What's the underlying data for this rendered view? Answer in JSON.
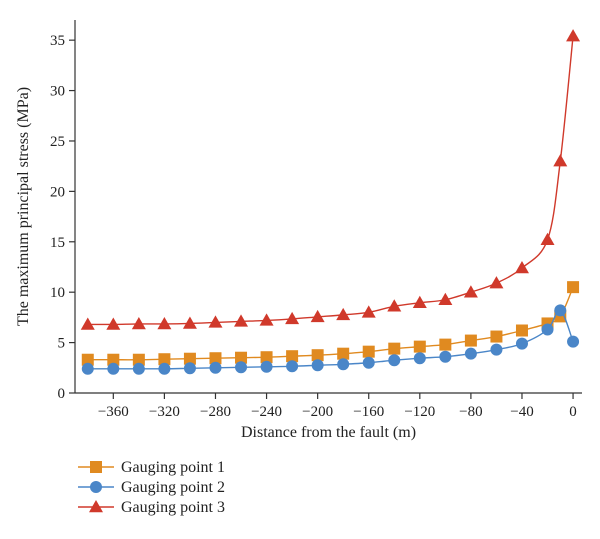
{
  "chart_data": {
    "type": "line",
    "title": "",
    "xlabel": "Distance from the fault (m)",
    "ylabel": "The maximum principal stress (MPa)",
    "xlim": [
      -390,
      7
    ],
    "ylim": [
      0,
      37
    ],
    "x_ticks": [
      -360,
      -320,
      -280,
      -240,
      -200,
      -160,
      -120,
      -80,
      -40,
      0
    ],
    "y_ticks": [
      0,
      5,
      10,
      15,
      20,
      25,
      30,
      35
    ],
    "grid": false,
    "legend_position": "bottom-left",
    "x": [
      -380,
      -360,
      -340,
      -320,
      -300,
      -280,
      -260,
      -240,
      -220,
      -200,
      -180,
      -160,
      -140,
      -120,
      -100,
      -80,
      -60,
      -40,
      -20,
      -10,
      0
    ],
    "series": [
      {
        "name": "Gauging point 1",
        "color": "#E08A20",
        "marker": "square",
        "values": [
          3.3,
          3.3,
          3.3,
          3.35,
          3.4,
          3.45,
          3.5,
          3.55,
          3.65,
          3.75,
          3.9,
          4.1,
          4.4,
          4.6,
          4.8,
          5.2,
          5.6,
          6.2,
          6.9,
          7.6,
          10.5
        ]
      },
      {
        "name": "Gauging point 2",
        "color": "#4A86C8",
        "marker": "circle",
        "values": [
          2.4,
          2.4,
          2.4,
          2.4,
          2.45,
          2.5,
          2.55,
          2.6,
          2.65,
          2.75,
          2.85,
          3.0,
          3.25,
          3.45,
          3.6,
          3.9,
          4.3,
          4.9,
          6.3,
          8.2,
          5.1
        ]
      },
      {
        "name": "Gauging point 3",
        "color": "#D0392B",
        "marker": "triangle",
        "values": [
          6.8,
          6.8,
          6.85,
          6.85,
          6.9,
          7.0,
          7.1,
          7.2,
          7.35,
          7.55,
          7.75,
          8.0,
          8.6,
          8.95,
          9.25,
          10.0,
          10.9,
          12.4,
          15.2,
          23.0,
          35.4
        ]
      }
    ]
  }
}
